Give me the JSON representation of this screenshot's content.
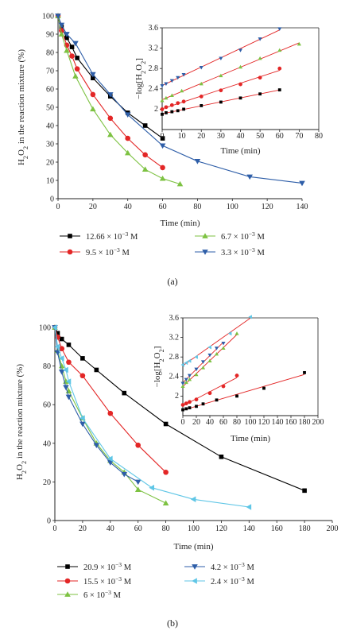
{
  "chart_data": [
    {
      "type": "line",
      "panel_label": "(a)",
      "xlabel": "Time (min)",
      "ylabel": "H2O2 in the reaction mixture (%)",
      "xlim": [
        0,
        140
      ],
      "ylim": [
        0,
        100
      ],
      "xticks": [
        "0",
        "20",
        "40",
        "60",
        "80",
        "100",
        "120",
        "140"
      ],
      "yticks": [
        "0",
        "10",
        "20",
        "30",
        "40",
        "50",
        "60",
        "70",
        "80",
        "90",
        "100"
      ],
      "grid": false,
      "legend_position": "bottom",
      "series": [
        {
          "name": "12.66 × 10⁻³ M",
          "marker": "square",
          "color": "#000000",
          "x": [
            0,
            2,
            5,
            8,
            11,
            20,
            30,
            40,
            50,
            60
          ],
          "y": [
            100,
            94,
            88,
            83,
            77,
            66,
            56,
            47,
            40,
            33
          ]
        },
        {
          "name": "9.5 × 10⁻³ M",
          "marker": "circle",
          "color": "#e32626",
          "x": [
            0,
            2,
            5,
            8,
            11,
            20,
            30,
            40,
            50,
            60
          ],
          "y": [
            100,
            92,
            84,
            78,
            71,
            57,
            44,
            33,
            24,
            17
          ]
        },
        {
          "name": "6.7 × 10⁻³ M",
          "marker": "triangle-up",
          "color": "#7dc242",
          "x": [
            0,
            2,
            5,
            10,
            20,
            30,
            40,
            50,
            60,
            70
          ],
          "y": [
            100,
            90,
            81,
            67,
            49,
            35,
            25,
            16,
            11,
            8
          ]
        },
        {
          "name": "3.3 × 10⁻³ M",
          "marker": "triangle-down",
          "color": "#2e5ea8",
          "x": [
            0,
            2,
            5,
            10,
            20,
            30,
            40,
            60,
            80,
            110,
            140
          ],
          "y": [
            100,
            95,
            90,
            85,
            68,
            57,
            46,
            29,
            20.5,
            12,
            8.5
          ]
        }
      ],
      "inset": {
        "ylabel": "−log[H2O2]",
        "xlabel": "Time (min)",
        "xlim": [
          0,
          80
        ],
        "ylim": [
          1.6,
          3.6
        ],
        "xticks": [
          "0",
          "10",
          "20",
          "30",
          "40",
          "50",
          "60",
          "70",
          "80"
        ],
        "yticks": [
          "2",
          "2.4",
          "2.8",
          "3.2",
          "3.6"
        ],
        "series": [
          {
            "marker": "square",
            "color": "#000000",
            "x": [
              0,
              2,
              5,
              8,
              11,
              20,
              30,
              40,
              50,
              60
            ],
            "y": [
              1.9,
              1.93,
              1.95,
              1.97,
              2.0,
              2.07,
              2.14,
              2.22,
              2.3,
              2.38
            ]
          },
          {
            "marker": "circle",
            "color": "#e32626",
            "x": [
              0,
              2,
              5,
              8,
              11,
              20,
              30,
              40,
              50,
              60
            ],
            "y": [
              2.0,
              2.04,
              2.08,
              2.12,
              2.15,
              2.25,
              2.37,
              2.49,
              2.62,
              2.8
            ]
          },
          {
            "marker": "triangle-up",
            "color": "#7dc242",
            "x": [
              0,
              2,
              5,
              10,
              20,
              30,
              40,
              50,
              60,
              70
            ],
            "y": [
              2.17,
              2.22,
              2.27,
              2.36,
              2.5,
              2.66,
              2.83,
              3.0,
              3.16,
              3.28
            ]
          },
          {
            "marker": "triangle-down",
            "color": "#2e5ea8",
            "x": [
              0,
              2,
              5,
              8,
              11,
              20,
              30,
              40,
              50,
              60
            ],
            "y": [
              2.46,
              2.5,
              2.56,
              2.62,
              2.68,
              2.82,
              3.0,
              3.16,
              3.38,
              3.58
            ]
          }
        ]
      }
    },
    {
      "type": "line",
      "panel_label": "(b)",
      "xlabel": "Time (min)",
      "ylabel": "H2O2 in the reaction mixture (%)",
      "xlim": [
        0,
        200
      ],
      "ylim": [
        0,
        100
      ],
      "xticks": [
        "0",
        "20",
        "40",
        "60",
        "80",
        "100",
        "120",
        "140",
        "160",
        "180",
        "200"
      ],
      "yticks": [
        "0",
        "20",
        "40",
        "60",
        "80",
        "100"
      ],
      "grid": false,
      "legend_position": "bottom",
      "series": [
        {
          "name": "20.9 × 10⁻³ M",
          "marker": "square",
          "color": "#000000",
          "x": [
            0,
            2,
            5,
            10,
            20,
            30,
            50,
            80,
            120,
            180
          ],
          "y": [
            100,
            97,
            94,
            91,
            84,
            78,
            66,
            50,
            33,
            15.5
          ]
        },
        {
          "name": "15.5 × 10⁻³ M",
          "marker": "circle",
          "color": "#e32626",
          "x": [
            0,
            2,
            5,
            10,
            20,
            40,
            60,
            80
          ],
          "y": [
            100,
            95,
            89,
            82,
            75,
            55.5,
            39,
            25
          ]
        },
        {
          "name": "6 × 10⁻³ M",
          "marker": "triangle-up",
          "color": "#7dc242",
          "x": [
            0,
            2,
            5,
            8,
            10,
            20,
            30,
            40,
            50,
            60,
            80
          ],
          "y": [
            100,
            88,
            80,
            72,
            67,
            53,
            40,
            31,
            25,
            16,
            9
          ]
        },
        {
          "name": "4.2 × 10⁻³ M",
          "marker": "triangle-down",
          "color": "#2e5ea8",
          "x": [
            0,
            2,
            5,
            8,
            10,
            20,
            30,
            40,
            50,
            60
          ],
          "y": [
            100,
            87,
            77,
            69,
            64,
            50,
            39,
            30,
            24,
            20
          ]
        },
        {
          "name": "2.4 × 10⁻³ M",
          "marker": "triangle-left",
          "color": "#5fc6e6",
          "x": [
            0,
            2,
            5,
            8,
            10,
            20,
            40,
            70,
            100,
            140
          ],
          "y": [
            100,
            90,
            84,
            78,
            72,
            53,
            32,
            17,
            11,
            7
          ]
        }
      ],
      "inset": {
        "ylabel": "−log[H2O2]",
        "xlabel": "Time (min)",
        "xlim": [
          0,
          200
        ],
        "ylim": [
          1.6,
          3.6
        ],
        "xticks": [
          "0",
          "20",
          "40",
          "60",
          "80",
          "100",
          "120",
          "140",
          "160",
          "180",
          "200"
        ],
        "yticks": [
          "2",
          "2.4",
          "2.8",
          "3.2",
          "3.6"
        ],
        "series": [
          {
            "marker": "square",
            "color": "#000000",
            "x": [
              0,
              5,
              10,
              20,
              30,
              50,
              80,
              120,
              180
            ],
            "y": [
              1.72,
              1.74,
              1.76,
              1.79,
              1.84,
              1.92,
              2.0,
              2.16,
              2.48
            ]
          },
          {
            "marker": "circle",
            "color": "#e32626",
            "x": [
              0,
              5,
              10,
              20,
              40,
              60,
              80
            ],
            "y": [
              1.82,
              1.85,
              1.88,
              1.93,
              2.06,
              2.2,
              2.42
            ]
          },
          {
            "marker": "triangle-up",
            "color": "#7dc242",
            "x": [
              0,
              5,
              10,
              20,
              30,
              40,
              50,
              60,
              80
            ],
            "y": [
              2.2,
              2.28,
              2.34,
              2.44,
              2.58,
              2.72,
              2.86,
              2.98,
              3.28
            ]
          },
          {
            "marker": "triangle-down",
            "color": "#2e5ea8",
            "x": [
              0,
              5,
              10,
              20,
              30,
              40,
              50,
              60
            ],
            "y": [
              2.26,
              2.34,
              2.42,
              2.55,
              2.7,
              2.84,
              2.98,
              3.08
            ]
          },
          {
            "marker": "triangle-left",
            "color": "#5fc6e6",
            "x": [
              0,
              5,
              10,
              20,
              40,
              70,
              100
            ],
            "y": [
              2.64,
              2.68,
              2.72,
              2.8,
              3.0,
              3.28,
              3.62
            ]
          }
        ]
      }
    }
  ]
}
